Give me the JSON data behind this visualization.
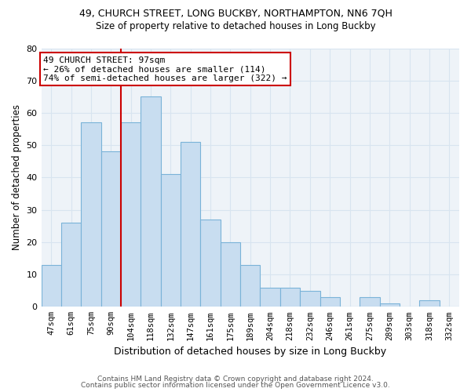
{
  "title": "49, CHURCH STREET, LONG BUCKBY, NORTHAMPTON, NN6 7QH",
  "subtitle": "Size of property relative to detached houses in Long Buckby",
  "xlabel": "Distribution of detached houses by size in Long Buckby",
  "ylabel": "Number of detached properties",
  "footer_line1": "Contains HM Land Registry data © Crown copyright and database right 2024.",
  "footer_line2": "Contains public sector information licensed under the Open Government Licence v3.0.",
  "bar_labels": [
    "47sqm",
    "61sqm",
    "75sqm",
    "90sqm",
    "104sqm",
    "118sqm",
    "132sqm",
    "147sqm",
    "161sqm",
    "175sqm",
    "189sqm",
    "204sqm",
    "218sqm",
    "232sqm",
    "246sqm",
    "261sqm",
    "275sqm",
    "289sqm",
    "303sqm",
    "318sqm",
    "332sqm"
  ],
  "bar_values": [
    13,
    26,
    57,
    48,
    57,
    65,
    41,
    51,
    27,
    20,
    13,
    6,
    6,
    5,
    3,
    0,
    3,
    1,
    0,
    2,
    0
  ],
  "bar_color": "#c8ddf0",
  "bar_edge_color": "#7ab3d8",
  "vline_x": 3.5,
  "vline_color": "#cc0000",
  "annotation_text": "49 CHURCH STREET: 97sqm\n← 26% of detached houses are smaller (114)\n74% of semi-detached houses are larger (322) →",
  "annotation_box_color": "white",
  "annotation_box_edge": "#cc0000",
  "ylim": [
    0,
    80
  ],
  "yticks": [
    0,
    10,
    20,
    30,
    40,
    50,
    60,
    70,
    80
  ],
  "grid_color": "#d8e4f0",
  "background_color": "#ffffff",
  "plot_bg_color": "#eef3f8"
}
